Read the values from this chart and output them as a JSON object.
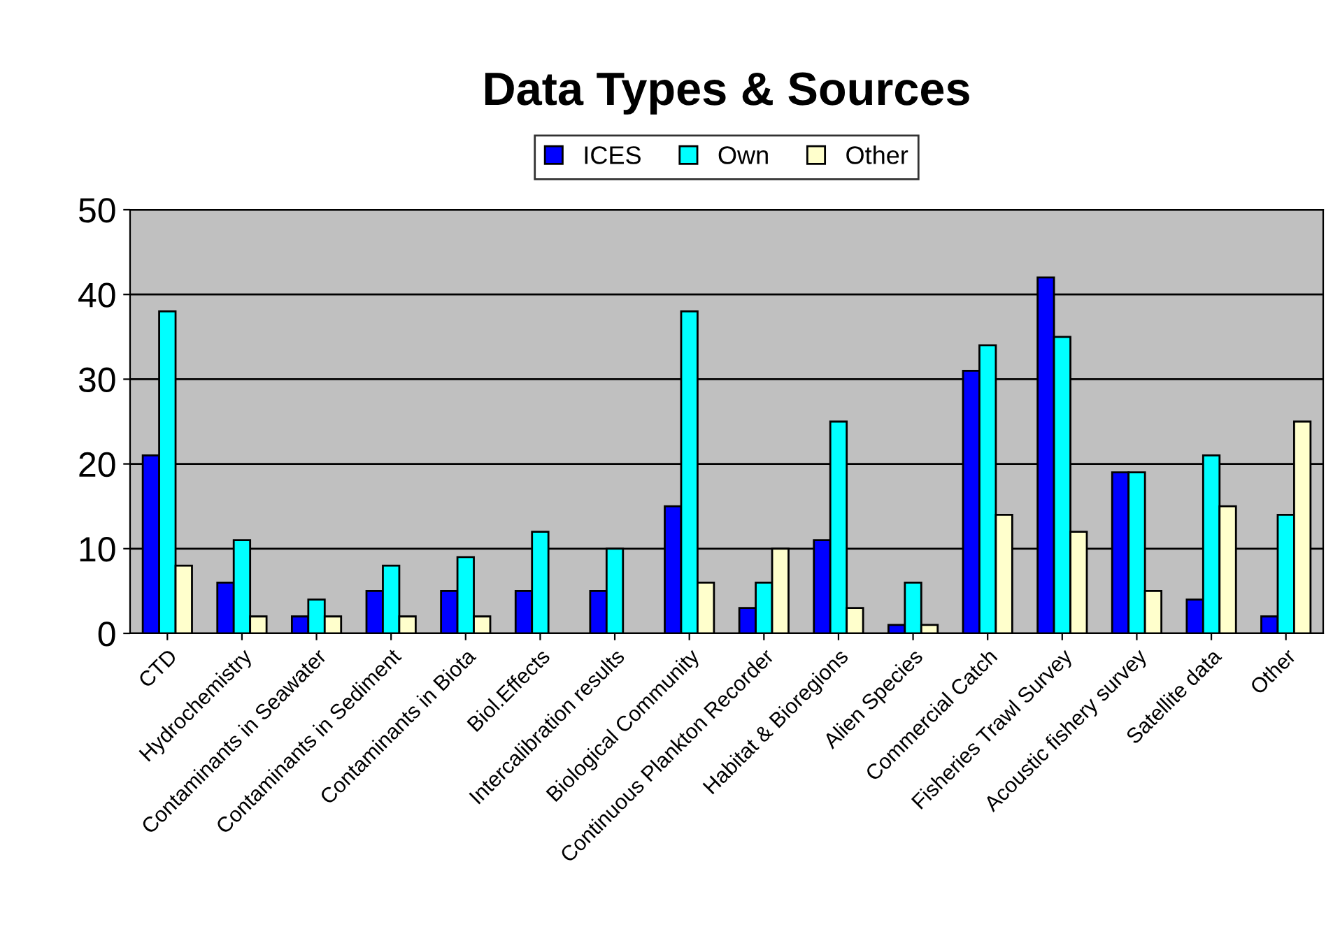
{
  "chart_data": {
    "type": "bar",
    "title": "Data Types & Sources",
    "categories": [
      "CTD",
      "Hydrochemistry",
      "Contaminants in Seawater",
      "Contaminants in Sediment",
      "Contaminants in Biota",
      "Biol.Effects",
      "Intercalibration results",
      "Biological Community",
      "Continuous Plankton Recorder",
      "Habitat & Bioregions",
      "Alien Species",
      "Commercial Catch",
      "Fisheries Trawl Survey",
      "Acoustic fishery survey",
      "Satellite data",
      "Other"
    ],
    "series": [
      {
        "name": "ICES",
        "color": "#0000ff",
        "values": [
          21,
          6,
          2,
          5,
          5,
          5,
          5,
          15,
          3,
          11,
          1,
          31,
          42,
          19,
          4,
          2
        ]
      },
      {
        "name": "Own",
        "color": "#00ffff",
        "values": [
          38,
          11,
          4,
          8,
          9,
          12,
          10,
          38,
          6,
          25,
          6,
          34,
          35,
          19,
          21,
          14
        ]
      },
      {
        "name": "Other",
        "color": "#ffffcc",
        "values": [
          8,
          2,
          2,
          2,
          2,
          null,
          null,
          6,
          10,
          3,
          1,
          14,
          12,
          5,
          15,
          25
        ]
      }
    ],
    "ylim": [
      0,
      50
    ],
    "yticks": [
      0,
      10,
      20,
      30,
      40,
      50
    ],
    "grid": "y",
    "legend": "top"
  }
}
